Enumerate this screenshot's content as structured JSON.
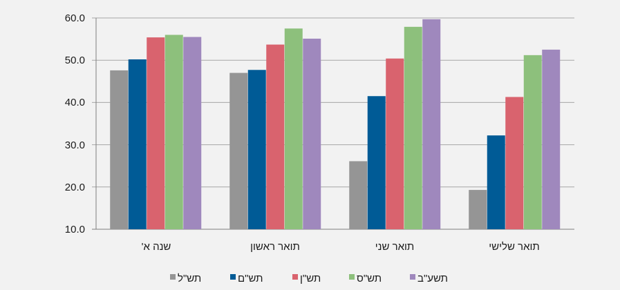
{
  "chart_data": {
    "type": "bar",
    "categories": [
      "שנה א'",
      "תואר ראשון",
      "תואר שני",
      "תואר שלישי"
    ],
    "series": [
      {
        "name": "תש\"ל",
        "color": "#959595",
        "values": [
          47.6,
          47.0,
          26.1,
          19.3
        ]
      },
      {
        "name": "תש\"ם",
        "color": "#005b96",
        "values": [
          50.2,
          47.7,
          41.5,
          32.2
        ]
      },
      {
        "name": "תש\"ן",
        "color": "#d9636e",
        "values": [
          55.4,
          53.7,
          50.4,
          41.3
        ]
      },
      {
        "name": "תש\"ס",
        "color": "#8dc07c",
        "values": [
          56.0,
          57.5,
          57.9,
          51.2
        ]
      },
      {
        "name": "תשע\"ב",
        "color": "#9f88bd",
        "values": [
          55.5,
          55.1,
          59.7,
          52.5
        ]
      }
    ],
    "yticks": [
      "10.0",
      "20.0",
      "30.0",
      "40.0",
      "50.0",
      "60.0"
    ],
    "ylim": [
      10,
      60
    ],
    "grid": true,
    "legend_position": "bottom",
    "category_order": "right-to-left"
  }
}
